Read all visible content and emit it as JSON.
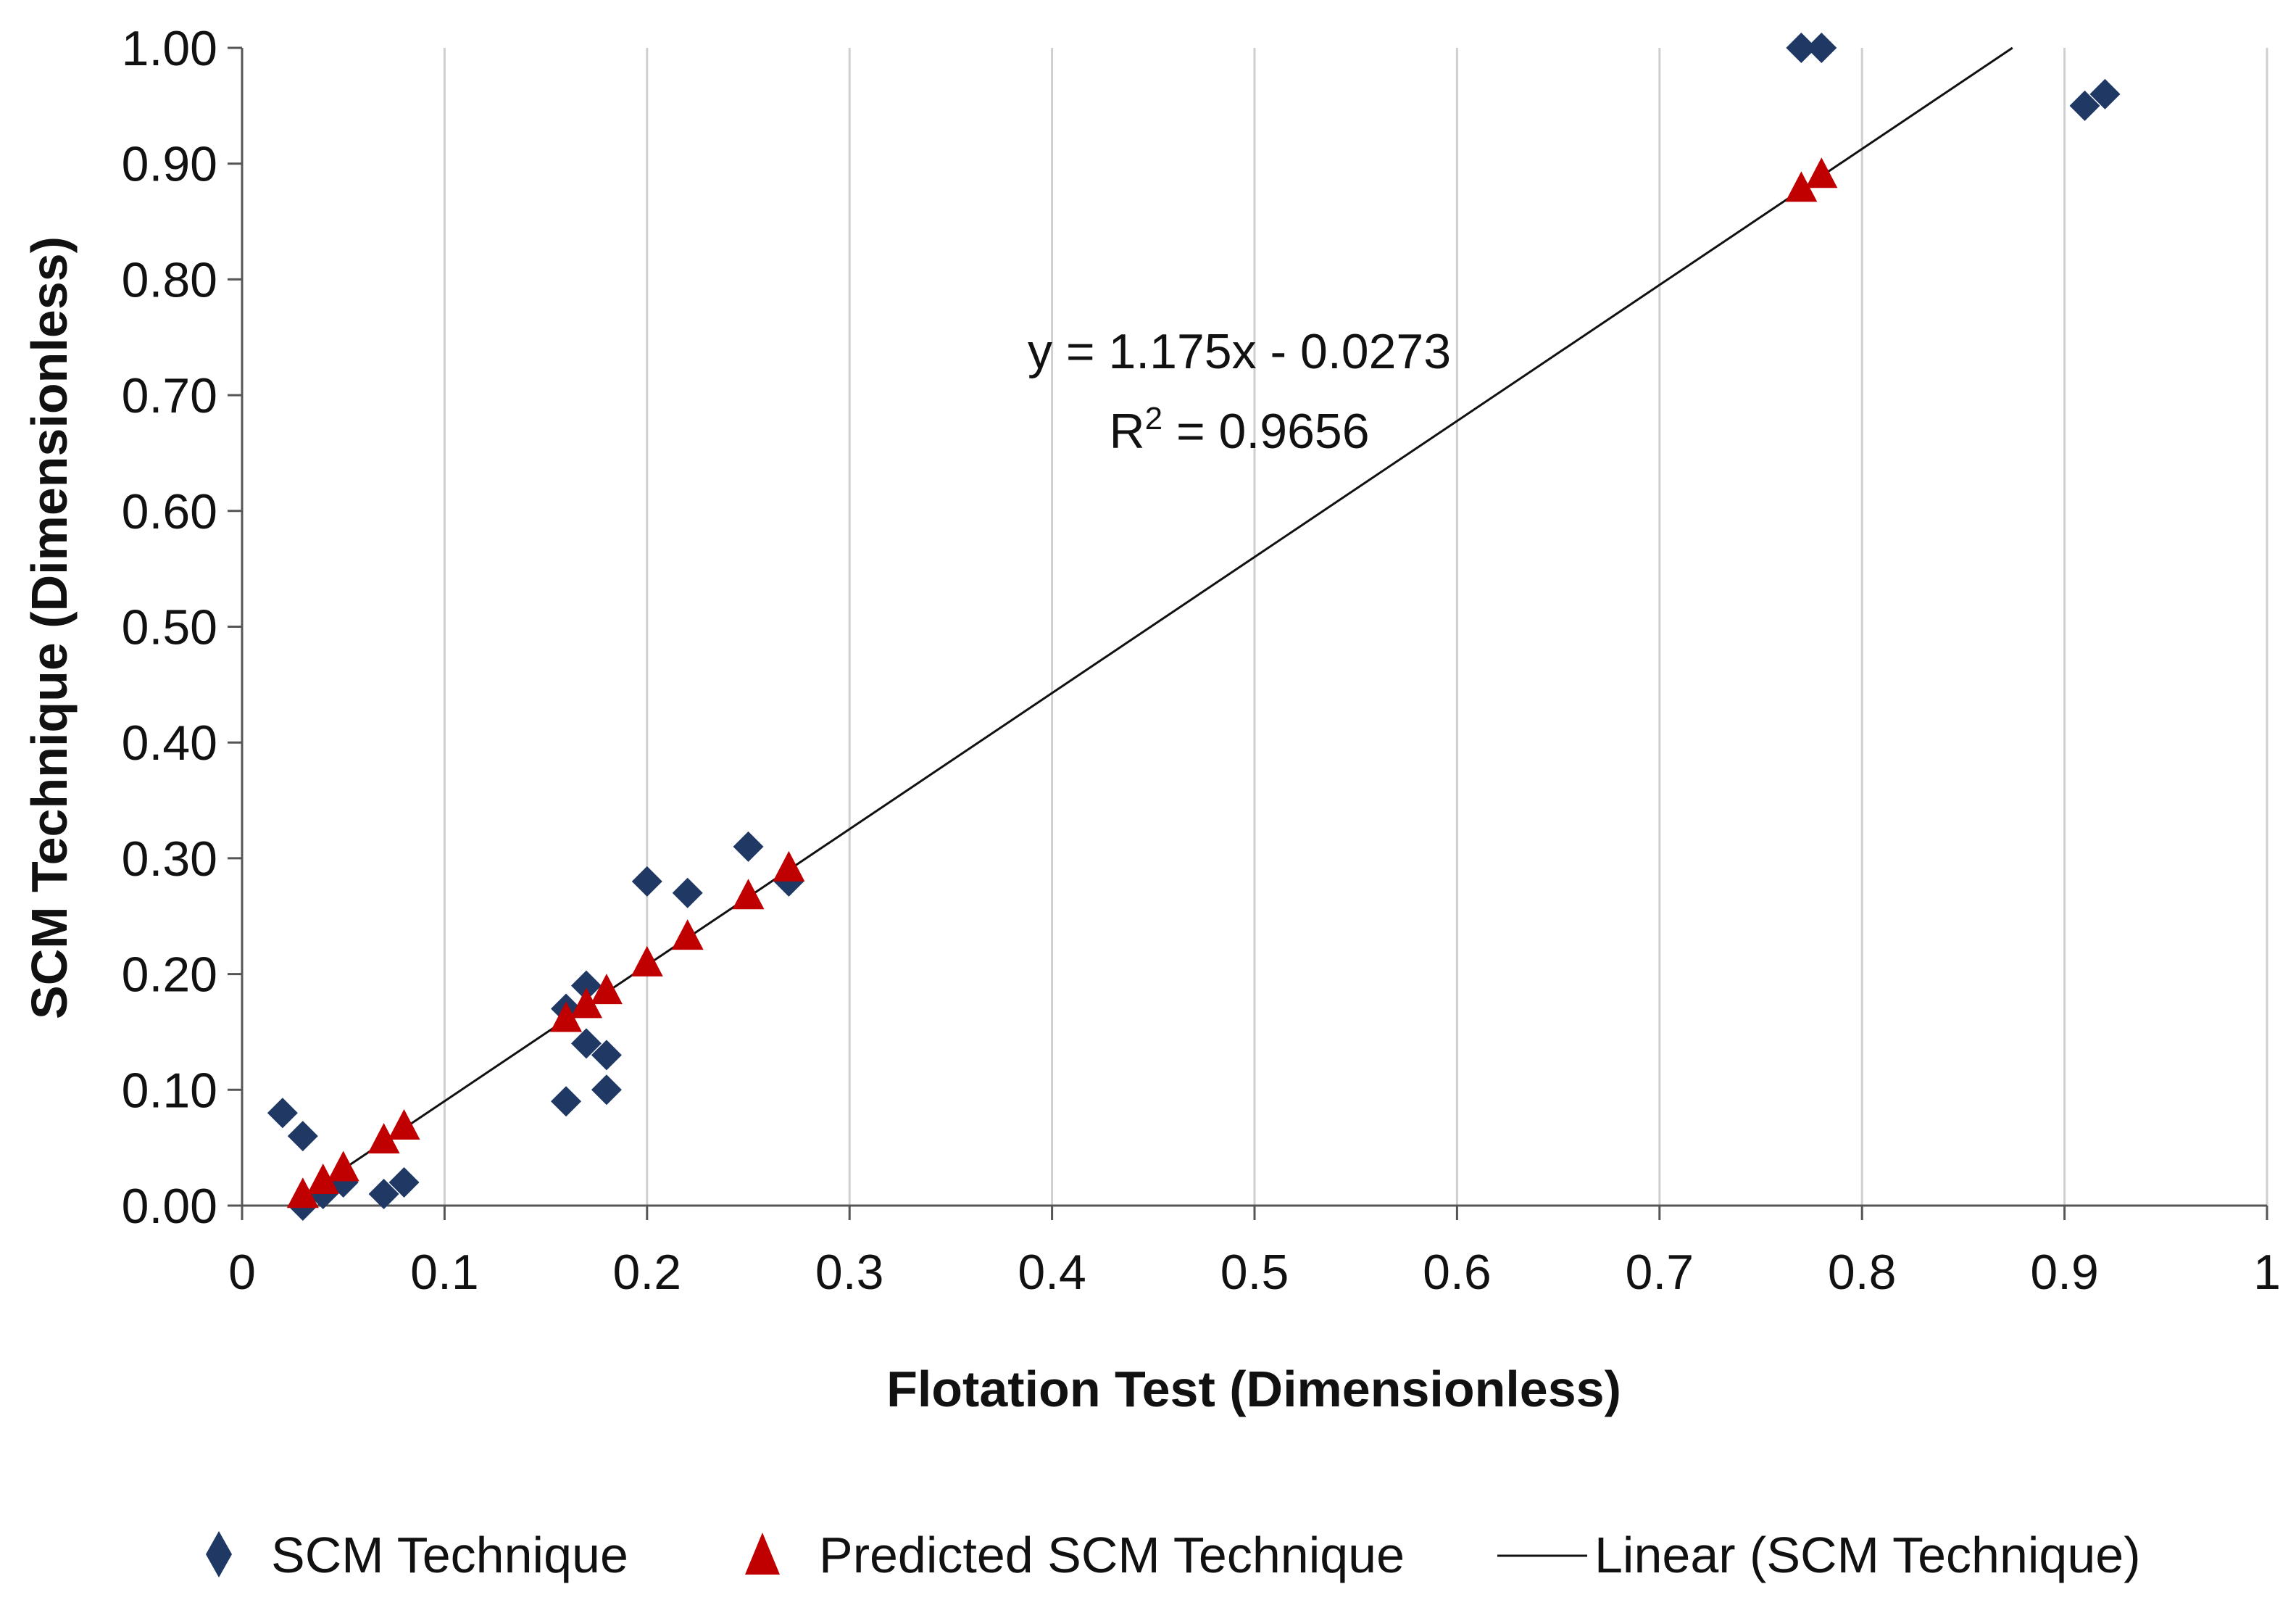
{
  "chart_data": {
    "type": "scatter",
    "title": "",
    "xlabel": "Flotation Test (Dimensionless)",
    "ylabel": "SCM Technique (Dimensionless)",
    "xlim": [
      0,
      1
    ],
    "ylim": [
      0,
      1
    ],
    "x_ticks": [
      "0",
      "0.1",
      "0.2",
      "0.3",
      "0.4",
      "0.5",
      "0.6",
      "0.7",
      "0.8",
      "0.9",
      "1"
    ],
    "y_ticks": [
      "0.00",
      "0.10",
      "0.20",
      "0.30",
      "0.40",
      "0.50",
      "0.60",
      "0.70",
      "0.80",
      "0.90",
      "1.00"
    ],
    "grid": "vertical",
    "legend_position": "bottom",
    "series": [
      {
        "name": "SCM Technique",
        "marker": "diamond",
        "color": "#1F3864",
        "points": [
          [
            0.02,
            0.08
          ],
          [
            0.03,
            0.06
          ],
          [
            0.03,
            0.0
          ],
          [
            0.04,
            0.01
          ],
          [
            0.05,
            0.02
          ],
          [
            0.07,
            0.01
          ],
          [
            0.08,
            0.02
          ],
          [
            0.16,
            0.09
          ],
          [
            0.16,
            0.17
          ],
          [
            0.17,
            0.19
          ],
          [
            0.17,
            0.14
          ],
          [
            0.18,
            0.13
          ],
          [
            0.18,
            0.1
          ],
          [
            0.2,
            0.28
          ],
          [
            0.22,
            0.27
          ],
          [
            0.25,
            0.31
          ],
          [
            0.27,
            0.28
          ],
          [
            0.77,
            1.0
          ],
          [
            0.78,
            1.0
          ],
          [
            0.91,
            0.95
          ],
          [
            0.92,
            0.96
          ]
        ]
      },
      {
        "name": "Predicted SCM Technique",
        "marker": "triangle",
        "color": "#C00000",
        "points": [
          [
            0.03,
            0.008
          ],
          [
            0.04,
            0.02
          ],
          [
            0.05,
            0.031
          ],
          [
            0.07,
            0.055
          ],
          [
            0.08,
            0.067
          ],
          [
            0.16,
            0.16
          ],
          [
            0.17,
            0.172
          ],
          [
            0.18,
            0.184
          ],
          [
            0.2,
            0.208
          ],
          [
            0.22,
            0.231
          ],
          [
            0.25,
            0.266
          ],
          [
            0.27,
            0.29
          ],
          [
            0.77,
            0.877
          ],
          [
            0.78,
            0.889
          ]
        ]
      }
    ],
    "trendline": {
      "name": "Linear (SCM Technique)",
      "slope": 1.175,
      "intercept": -0.0273,
      "color": "#111111"
    },
    "annotations": {
      "equation": "y = 1.175x - 0.0273",
      "r2_prefix": "R",
      "r2_exponent": "2",
      "r2_value": " = 0.9656"
    }
  }
}
